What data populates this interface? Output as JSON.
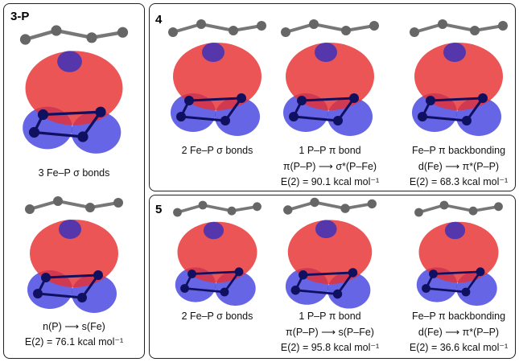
{
  "panels": [
    {
      "label": "3-P",
      "items": [
        {
          "lines": [
            "3 Fe–P σ bonds"
          ]
        },
        {
          "lines": [
            "n(P) ⟶ s(Fe)",
            "E(2) = 76.1 kcal mol⁻¹"
          ]
        }
      ]
    },
    {
      "label": "4",
      "items": [
        {
          "lines": [
            "2 Fe–P σ bonds"
          ]
        },
        {
          "lines": [
            "1 P–P π bond",
            "π(P–P) ⟶ σ*(P–Fe)",
            "E(2) = 90.1 kcal mol⁻¹"
          ]
        },
        {
          "lines": [
            "Fe–P π backbonding",
            "d(Fe) ⟶ π*(P–P)",
            "E(2) = 68.3 kcal mol⁻¹"
          ]
        }
      ]
    },
    {
      "label": "5",
      "items": [
        {
          "lines": [
            "2 Fe–P σ bonds"
          ]
        },
        {
          "lines": [
            "1 P–P π bond",
            "π(P–P) ⟶ s(P–Fe)",
            "E(2) = 95.8 kcal mol⁻¹"
          ]
        },
        {
          "lines": [
            "Fe–P π backbonding",
            "d(Fe) ⟶ π*(P–P)",
            "E(2) = 36.6 kcal mol⁻¹"
          ]
        }
      ]
    }
  ]
}
